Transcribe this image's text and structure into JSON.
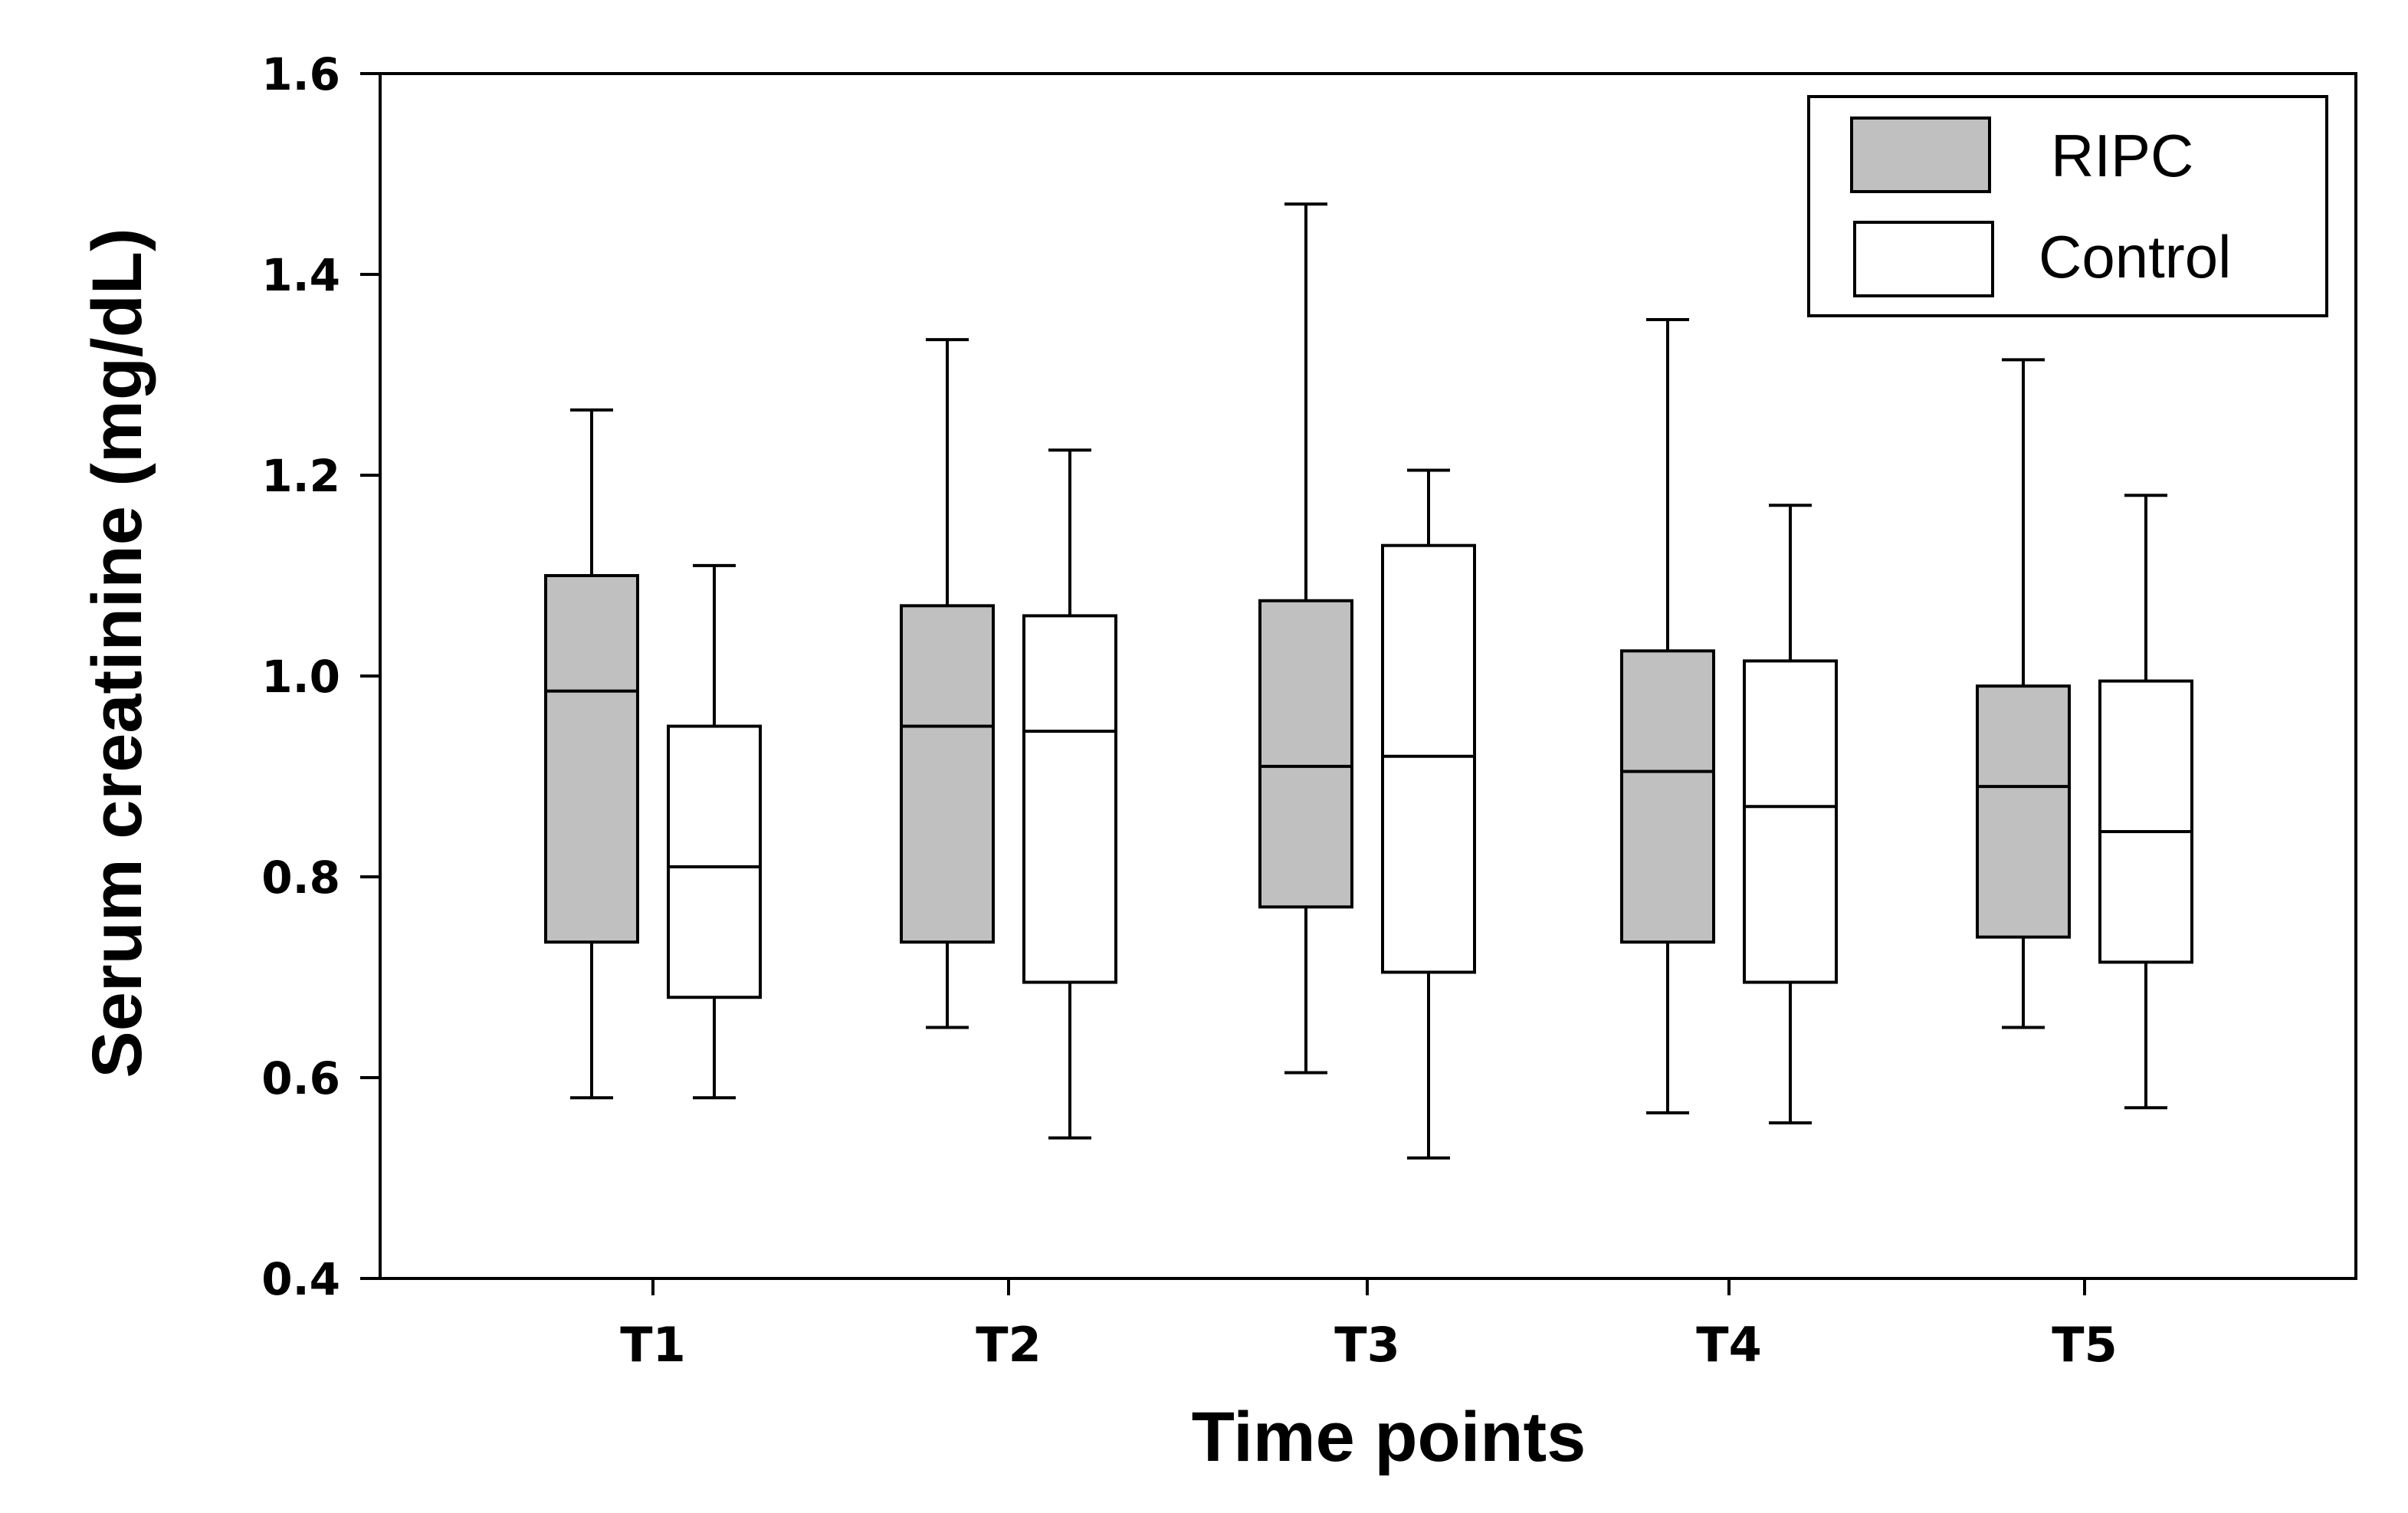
{
  "chart_data": {
    "type": "boxplot",
    "title": "",
    "xlabel": "Time points",
    "ylabel": "Serum creatinine (mg/dL)",
    "ylim": [
      0.4,
      1.6
    ],
    "yticks": [
      "0.4",
      "0.6",
      "0.8",
      "1.0",
      "1.2",
      "1.4",
      "1.6"
    ],
    "ytick_values": [
      0.4,
      0.6,
      0.8,
      1.0,
      1.2,
      1.4,
      1.6
    ],
    "categories": [
      "T1",
      "T2",
      "T3",
      "T4",
      "T5"
    ],
    "legend_position": "top-right",
    "series": [
      {
        "name": "RIPC",
        "color": "#c0c0c0",
        "boxes": [
          {
            "min": 0.58,
            "q1": 0.735,
            "median": 0.985,
            "q3": 1.1,
            "max": 1.265
          },
          {
            "min": 0.65,
            "q1": 0.735,
            "median": 0.95,
            "q3": 1.07,
            "max": 1.335
          },
          {
            "min": 0.605,
            "q1": 0.77,
            "median": 0.91,
            "q3": 1.075,
            "max": 1.47
          },
          {
            "min": 0.565,
            "q1": 0.735,
            "median": 0.905,
            "q3": 1.025,
            "max": 1.355
          },
          {
            "min": 0.65,
            "q1": 0.74,
            "median": 0.89,
            "q3": 0.99,
            "max": 1.315
          }
        ]
      },
      {
        "name": "Control",
        "color": "#ffffff",
        "boxes": [
          {
            "min": 0.58,
            "q1": 0.68,
            "median": 0.81,
            "q3": 0.95,
            "max": 1.11
          },
          {
            "min": 0.54,
            "q1": 0.695,
            "median": 0.945,
            "q3": 1.06,
            "max": 1.225
          },
          {
            "min": 0.52,
            "q1": 0.705,
            "median": 0.92,
            "q3": 1.13,
            "max": 1.205
          },
          {
            "min": 0.555,
            "q1": 0.695,
            "median": 0.87,
            "q3": 1.015,
            "max": 1.17
          },
          {
            "min": 0.57,
            "q1": 0.715,
            "median": 0.845,
            "q3": 0.995,
            "max": 1.18
          }
        ]
      }
    ]
  }
}
